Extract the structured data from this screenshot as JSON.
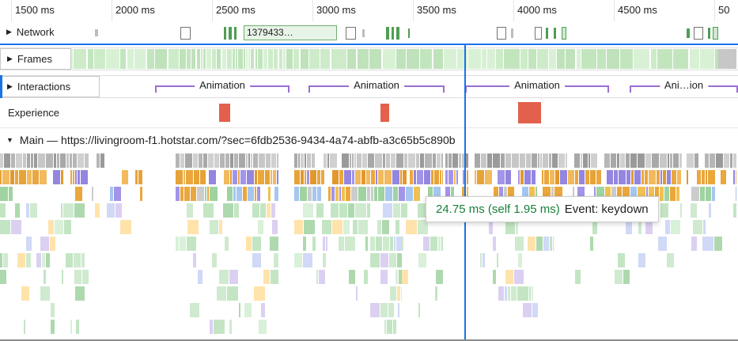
{
  "icons": {
    "expand": "▶",
    "collapse": "▼"
  },
  "colors": {
    "accent_blue": "#1a73e8",
    "playhead": "#1a73e8",
    "interaction_purple": "#9a6fd0",
    "experience_red": "#e2604c",
    "tooltip_green": "#188038",
    "network_green": "#4f9e55",
    "frames_green": "#cdebc9"
  },
  "ruler": {
    "ticks": [
      "1500 ms",
      "2000 ms",
      "2500 ms",
      "3000 ms",
      "3500 ms",
      "4000 ms",
      "4500 ms",
      "50"
    ]
  },
  "network": {
    "label": "Network",
    "labeled_request": "1379433…"
  },
  "frames": {
    "label": "Frames"
  },
  "interactions": {
    "label": "Interactions",
    "brackets": [
      "Animation",
      "Animation",
      "Animation",
      "Ani…ion"
    ]
  },
  "experience": {
    "label": "Experience"
  },
  "main": {
    "label": "Main — https://livingroom-f1.hotstar.com/?sec=6fdb2536-9434-4a74-abfb-a3c65b5c890b"
  },
  "tooltip": {
    "duration": "24.75 ms (self 1.95 ms)",
    "event": "Event: keydown"
  }
}
